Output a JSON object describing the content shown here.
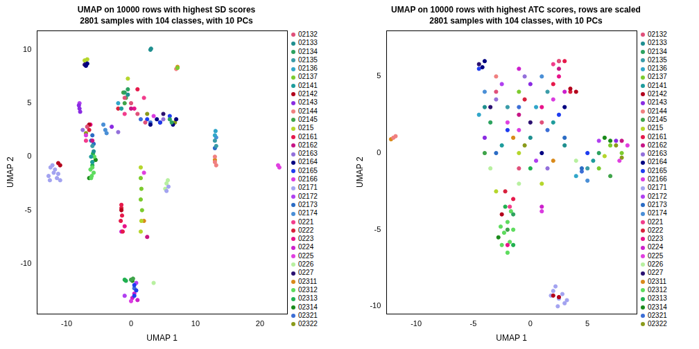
{
  "chart_data": [
    {
      "type": "scatter",
      "title": "UMAP on 10000 rows with highest SD scores",
      "subtitle": "2801 samples with 104 classes, with 10 PCs",
      "x_label": "UMAP 1",
      "y_label": "UMAP 2",
      "xlim": [
        -14.6,
        24.2
      ],
      "ylim": [
        -14.7,
        11.8
      ],
      "xticks": [
        -10,
        0,
        10,
        20
      ],
      "yticks": [
        -10,
        -5,
        0,
        5,
        10
      ],
      "grid": false,
      "legend": "right",
      "marker": "circle",
      "series": [
        {
          "name": "02132",
          "color": "#E0507A",
          "x": [
            -1,
            0,
            1,
            -6.8,
            2.2
          ],
          "values": [
            5.5,
            5,
            4,
            2.8,
            3.2
          ]
        },
        {
          "name": "02133",
          "color": "#1F8F8F",
          "x": [
            3,
            3.1,
            -0.5,
            -5.8
          ],
          "values": [
            10,
            10.1,
            5.8,
            0.5
          ]
        },
        {
          "name": "02134",
          "color": "#2CA25F",
          "x": [
            6,
            6.3,
            -1,
            -0.5
          ],
          "values": [
            3.5,
            3.2,
            6,
            6.3
          ]
        },
        {
          "name": "02135",
          "color": "#3A9CA8",
          "x": [
            13,
            13.2,
            -6
          ],
          "values": [
            1.5,
            1,
            1
          ]
        },
        {
          "name": "02136",
          "color": "#31A6C9",
          "x": [
            13,
            13.1,
            -2
          ],
          "values": [
            2,
            2.4,
            5
          ]
        },
        {
          "name": "02137",
          "color": "#7CCB2E",
          "x": [
            1.5,
            1.6,
            1.5,
            1.7,
            7.2
          ],
          "values": [
            -2,
            -3,
            -4,
            -5,
            8.3
          ]
        },
        {
          "name": "02141",
          "color": "#1E9C9C",
          "x": [
            -1.5,
            -6.2,
            -6
          ],
          "values": [
            4.5,
            0,
            -0.5
          ]
        },
        {
          "name": "02142",
          "color": "#B3001B",
          "x": [
            -11,
            -11.3,
            -1.5,
            -6.5
          ],
          "values": [
            -0.8,
            -0.6,
            -5,
            3
          ]
        },
        {
          "name": "02143",
          "color": "#8A2BE2",
          "x": [
            -8,
            -8.1,
            -7.9,
            -3
          ],
          "values": [
            4.5,
            4.8,
            4.2,
            2.8
          ]
        },
        {
          "name": "02144",
          "color": "#F08080",
          "x": [
            13,
            13.2,
            7,
            13
          ],
          "values": [
            -0.5,
            -0.8,
            8.2,
            0
          ]
        },
        {
          "name": "02145",
          "color": "#3FA44A",
          "x": [
            0,
            0.3,
            -1.2,
            -0.8,
            -1
          ],
          "values": [
            -11.5,
            -11.4,
            6,
            5.5,
            5
          ]
        },
        {
          "name": "0215",
          "color": "#B5D62C",
          "x": [
            -7.2,
            -6.8,
            1.5,
            1.6,
            1.5,
            -0.5
          ],
          "values": [
            9,
            9.1,
            -1,
            -6,
            -7,
            7.3
          ]
        },
        {
          "name": "02161",
          "color": "#E6194B",
          "x": [
            -1.5,
            -1.4,
            -1.6,
            -1.3,
            1
          ],
          "values": [
            -4.5,
            -5.5,
            -6,
            -7,
            6.3
          ]
        },
        {
          "name": "02162",
          "color": "#C71585",
          "x": [
            2.5,
            0,
            -6
          ],
          "values": [
            -7.5,
            4.5,
            1.5
          ]
        },
        {
          "name": "02163",
          "color": "#9370DB",
          "x": [
            -7.5,
            5,
            -2
          ],
          "values": [
            2.5,
            3.5,
            2.3
          ]
        },
        {
          "name": "02164",
          "color": "#000080",
          "x": [
            -7,
            -6.8,
            3,
            4,
            7,
            6.5
          ],
          "values": [
            8.5,
            8.7,
            3,
            3.5,
            3.5,
            3
          ]
        },
        {
          "name": "02165",
          "color": "#1E3CF0",
          "x": [
            0.5,
            0.8,
            0.5,
            2.5,
            4.5,
            6
          ],
          "values": [
            -12,
            -12.5,
            -13,
            3.5,
            3.2,
            3.8
          ]
        },
        {
          "name": "02166",
          "color": "#DA3BE0",
          "x": [
            -7,
            0,
            3.5
          ],
          "values": [
            2,
            -13.5,
            3.8
          ]
        },
        {
          "name": "02171",
          "color": "#A3A3F0",
          "x": [
            -12.5,
            -12,
            -11.5,
            -12.8,
            -11,
            -12.2,
            -11.8,
            -12.6,
            -11.3,
            5.5,
            5.8
          ],
          "values": [
            -1,
            -1.5,
            -2,
            -1.8,
            -2.2,
            -0.8,
            -1.2,
            -2.2,
            -1.6,
            -3.2,
            -2.8
          ]
        },
        {
          "name": "02172",
          "color": "#B040F0",
          "x": [
            -8,
            -1,
            0.8
          ],
          "values": [
            5,
            -13,
            -11.8
          ]
        },
        {
          "name": "02173",
          "color": "#2B6CC4",
          "x": [
            -6,
            -6.2,
            -5.8,
            13
          ],
          "values": [
            2,
            1.5,
            1.2,
            0.8
          ]
        },
        {
          "name": "02174",
          "color": "#4A8FD6",
          "x": [
            -4,
            -4.3,
            -3.8,
            13.2
          ],
          "values": [
            2.5,
            3,
            2.2,
            1.8
          ]
        },
        {
          "name": "0221",
          "color": "#F23C8C",
          "x": [
            -7,
            -1,
            2
          ],
          "values": [
            1.5,
            4,
            5.5
          ]
        },
        {
          "name": "0222",
          "color": "#D8203C",
          "x": [
            -6.5,
            -6.8,
            -1.5,
            -2
          ],
          "values": [
            2.5,
            2.8,
            -4.8,
            4.5
          ]
        },
        {
          "name": "0223",
          "color": "#E8138A",
          "x": [
            -1,
            0.5,
            -6.3
          ],
          "values": [
            -6.5,
            4.5,
            3
          ]
        },
        {
          "name": "0224",
          "color": "#CC1FCC",
          "x": [
            0.5,
            1,
            0.2,
            -1.5
          ],
          "values": [
            -12.8,
            -13.4,
            -13.2,
            -7
          ]
        },
        {
          "name": "0225",
          "color": "#E040E0",
          "x": [
            23,
            22.8,
            2
          ],
          "values": [
            -1,
            -0.8,
            -1.5
          ]
        },
        {
          "name": "0226",
          "color": "#B8F0A0",
          "x": [
            5.5,
            5.7,
            5.3,
            3.5
          ],
          "values": [
            -2.5,
            -2.2,
            -3,
            -11.8
          ]
        },
        {
          "name": "0227",
          "color": "#2A1070",
          "x": [
            -7.2,
            -7,
            4.5,
            5
          ],
          "values": [
            8.6,
            8.8,
            3.2,
            4
          ]
        },
        {
          "name": "02311",
          "color": "#D98A1A",
          "x": [
            7.2,
            13,
            2
          ],
          "values": [
            8.4,
            -0.3,
            -6
          ]
        },
        {
          "name": "02312",
          "color": "#5EDC5E",
          "x": [
            -6,
            -5.8,
            -6.2,
            -6,
            -5.7,
            -6.3,
            -6.1
          ],
          "values": [
            -1,
            -1.5,
            -2,
            -0.5,
            0,
            -1.2,
            -1.8
          ]
        },
        {
          "name": "02313",
          "color": "#20B050",
          "x": [
            -6,
            -5.9,
            -1,
            -0.8
          ],
          "values": [
            -0.8,
            0.3,
            -11.5,
            -11.6
          ]
        },
        {
          "name": "02314",
          "color": "#1A8A1A",
          "x": [
            -5.5,
            -6.5,
            0.2
          ],
          "values": [
            -0.3,
            -2,
            -11.6
          ]
        },
        {
          "name": "02321",
          "color": "#3C6ED6",
          "x": [
            1.5,
            3,
            0.5
          ],
          "values": [
            3.5,
            3.2,
            -12.3
          ]
        },
        {
          "name": "02322",
          "color": "#8A9A1A",
          "x": [
            6.8,
            -7,
            2.5
          ],
          "values": [
            3.2,
            2.2,
            4
          ]
        }
      ]
    },
    {
      "type": "scatter",
      "title": "UMAP on 10000 rows with highest ATC scores, rows are scaled",
      "subtitle": "2801 samples with 104 classes, with 10 PCs",
      "x_label": "UMAP 1",
      "y_label": "UMAP 2",
      "xlim": [
        -12.6,
        9.3
      ],
      "ylim": [
        -10.5,
        8
      ],
      "xticks": [
        -10,
        -5,
        0,
        5
      ],
      "yticks": [
        -10,
        -5,
        0,
        5
      ],
      "grid": false,
      "legend": "right",
      "marker": "circle",
      "series": [
        {
          "name": "02132",
          "color": "#E0507A",
          "x": [
            -3,
            1,
            2.5,
            -1
          ],
          "values": [
            4,
            2,
            6,
            -1
          ]
        },
        {
          "name": "02133",
          "color": "#1F8F8F",
          "x": [
            -4,
            0,
            3
          ],
          "values": [
            3,
            1,
            0.5
          ]
        },
        {
          "name": "02134",
          "color": "#2CA25F",
          "x": [
            -3.5,
            6,
            -1.5
          ],
          "values": [
            2,
            0,
            -4
          ]
        },
        {
          "name": "02135",
          "color": "#3A9CA8",
          "x": [
            -2,
            1.5,
            5
          ],
          "values": [
            3,
            4,
            -1
          ]
        },
        {
          "name": "02136",
          "color": "#31A6C9",
          "x": [
            -4.5,
            0.5,
            4
          ],
          "values": [
            2.5,
            3,
            -1.5
          ]
        },
        {
          "name": "02137",
          "color": "#7CCB2E",
          "x": [
            6,
            7,
            8,
            -1
          ],
          "values": [
            -1,
            0.5,
            0,
            4
          ]
        },
        {
          "name": "02141",
          "color": "#1E9C9C",
          "x": [
            -2.5,
            2,
            5.5
          ],
          "values": [
            0.5,
            2,
            -0.5
          ]
        },
        {
          "name": "02142",
          "color": "#B3001B",
          "x": [
            4,
            3.5,
            -2.5,
            2,
            2.5
          ],
          "values": [
            4,
            4.2,
            -4,
            -9.3,
            -9.4
          ]
        },
        {
          "name": "02143",
          "color": "#8A2BE2",
          "x": [
            -4,
            0,
            7.5
          ],
          "values": [
            1,
            4.5,
            0.8
          ]
        },
        {
          "name": "02144",
          "color": "#F08080",
          "x": [
            -12,
            -11.8,
            -3
          ],
          "values": [
            1,
            1.1,
            5
          ]
        },
        {
          "name": "02145",
          "color": "#3FA44A",
          "x": [
            -2,
            7,
            -4
          ],
          "values": [
            -5,
            -1.5,
            0
          ]
        },
        {
          "name": "0215",
          "color": "#B5D62C",
          "x": [
            -1,
            1,
            6.5,
            -3
          ],
          "values": [
            0,
            -2,
            -0.2,
            -2.5
          ]
        },
        {
          "name": "02161",
          "color": "#E6194B",
          "x": [
            -1.5,
            2,
            3
          ],
          "values": [
            -3,
            4.5,
            6
          ]
        },
        {
          "name": "02162",
          "color": "#C71585",
          "x": [
            2.5,
            -1,
            8
          ],
          "values": [
            5.5,
            2.5,
            0.8
          ]
        },
        {
          "name": "02163",
          "color": "#9370DB",
          "x": [
            -3,
            1.5,
            -0.5
          ],
          "values": [
            3.5,
            -1,
            5
          ]
        },
        {
          "name": "02164",
          "color": "#000080",
          "x": [
            -4.2,
            -4,
            1,
            3
          ],
          "values": [
            5.6,
            6,
            0,
            3
          ]
        },
        {
          "name": "02165",
          "color": "#1E3CF0",
          "x": [
            -4.5,
            -2,
            2.5,
            5
          ],
          "values": [
            5.5,
            1.5,
            2.5,
            0
          ]
        },
        {
          "name": "02166",
          "color": "#DA3BE0",
          "x": [
            -1,
            2,
            1
          ],
          "values": [
            1.5,
            3.5,
            -3.8
          ]
        },
        {
          "name": "02171",
          "color": "#A3A3F0",
          "x": [
            2,
            2.5,
            3,
            2.2,
            1.8,
            2.8,
            3.2,
            2.4
          ],
          "values": [
            -9,
            -9.5,
            -9.8,
            -8.7,
            -9.3,
            -9.2,
            -9.6,
            -10
          ]
        },
        {
          "name": "02172",
          "color": "#B040F0",
          "x": [
            -2.5,
            0.5,
            6
          ],
          "values": [
            4.5,
            -0.5,
            0.8
          ]
        },
        {
          "name": "02173",
          "color": "#2B6CC4",
          "x": [
            -3,
            3,
            4.5
          ],
          "values": [
            0,
            1,
            -1
          ]
        },
        {
          "name": "02174",
          "color": "#4A8FD6",
          "x": [
            -4,
            1,
            5
          ],
          "values": [
            4,
            5,
            -1.8
          ]
        },
        {
          "name": "0221",
          "color": "#F23C8C",
          "x": [
            2.5,
            2,
            -1.8
          ],
          "values": [
            6,
            5.8,
            -3.5
          ]
        },
        {
          "name": "0222",
          "color": "#D8203C",
          "x": [
            3.5,
            -2.2,
            -0.5
          ],
          "values": [
            4,
            -2.5,
            3.5
          ]
        },
        {
          "name": "0223",
          "color": "#E8138A",
          "x": [
            -2,
            2.5,
            1
          ],
          "values": [
            -6,
            5,
            3
          ]
        },
        {
          "name": "0224",
          "color": "#CC1FCC",
          "x": [
            1,
            -1,
            3
          ],
          "values": [
            -3.5,
            5.5,
            4
          ]
        },
        {
          "name": "0225",
          "color": "#E040E0",
          "x": [
            8.5,
            7.8,
            -2
          ],
          "values": [
            0.5,
            -0.5,
            2
          ]
        },
        {
          "name": "0226",
          "color": "#B8F0A0",
          "x": [
            -3.5,
            4,
            -1
          ],
          "values": [
            -1,
            -0.5,
            -2
          ]
        },
        {
          "name": "0227",
          "color": "#2A1070",
          "x": [
            -4.5,
            0,
            -3.5
          ],
          "values": [
            5.8,
            2,
            3
          ]
        },
        {
          "name": "02311",
          "color": "#D98A1A",
          "x": [
            -1.5,
            2,
            -12.2
          ],
          "values": [
            1,
            -0.5,
            0.9
          ]
        },
        {
          "name": "02312",
          "color": "#5EDC5E",
          "x": [
            -2,
            -2.3,
            -1.8,
            -2.5,
            -2,
            -1.5,
            -2.6,
            -1.7
          ],
          "values": [
            -4.5,
            -5.2,
            -5.8,
            -6,
            -6.5,
            -5,
            -4.8,
            -3.8
          ]
        },
        {
          "name": "02313",
          "color": "#20B050",
          "x": [
            -2.2,
            -1.5,
            0
          ],
          "values": [
            -3.5,
            -6,
            -1
          ]
        },
        {
          "name": "02314",
          "color": "#1A8A1A",
          "x": [
            7,
            -2.8,
            6.5
          ],
          "values": [
            0.8,
            -5.5,
            1
          ]
        },
        {
          "name": "02321",
          "color": "#3C6ED6",
          "x": [
            -1,
            1.5,
            4.5
          ],
          "values": [
            3,
            1.5,
            -1.2
          ]
        },
        {
          "name": "02322",
          "color": "#8A9A1A",
          "x": [
            7.5,
            8,
            -0.5
          ],
          "values": [
            0.5,
            -0.3,
            0.5
          ]
        }
      ]
    }
  ]
}
